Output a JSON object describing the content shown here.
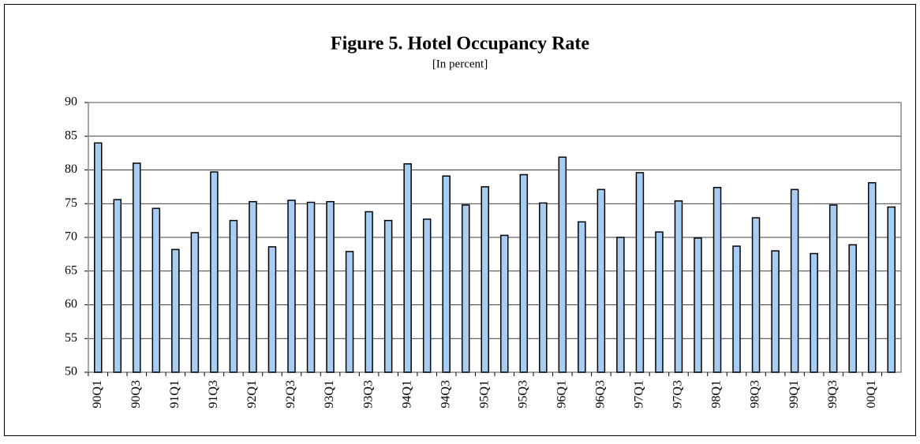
{
  "chart_data": {
    "type": "bar",
    "title": "Figure 5.  Hotel Occupancy Rate",
    "subtitle": "[In percent]",
    "categories": [
      "90Q1",
      null,
      "90Q3",
      null,
      "91Q1",
      null,
      "91Q3",
      null,
      "92Q1",
      null,
      "92Q3",
      null,
      "93Q1",
      null,
      "93Q3",
      null,
      "94Q1",
      null,
      "94Q3",
      null,
      "95Q1",
      null,
      "95Q3",
      null,
      "96Q1",
      null,
      "96Q3",
      null,
      "97Q1",
      null,
      "97Q3",
      null,
      "98Q1",
      null,
      "98Q3",
      null,
      "99Q1",
      null,
      "99Q3",
      null,
      "00Q1",
      null
    ],
    "values": [
      84,
      75.6,
      81,
      74.3,
      68.2,
      70.7,
      79.7,
      72.5,
      75.3,
      68.6,
      75.5,
      75.2,
      75.3,
      67.9,
      73.8,
      72.5,
      80.9,
      72.7,
      79.1,
      74.8,
      77.5,
      70.3,
      79.3,
      75.1,
      81.9,
      72.3,
      77.1,
      70,
      79.6,
      70.8,
      75.4,
      69.9,
      77.4,
      68.7,
      72.9,
      68,
      77.1,
      67.6,
      74.8,
      68.9,
      78.1,
      74.5
    ],
    "color": "#a8cdf2",
    "ylim": [
      50,
      90
    ],
    "yticks": [
      50,
      55,
      60,
      65,
      70,
      75,
      80,
      85,
      90
    ],
    "grid": true
  }
}
